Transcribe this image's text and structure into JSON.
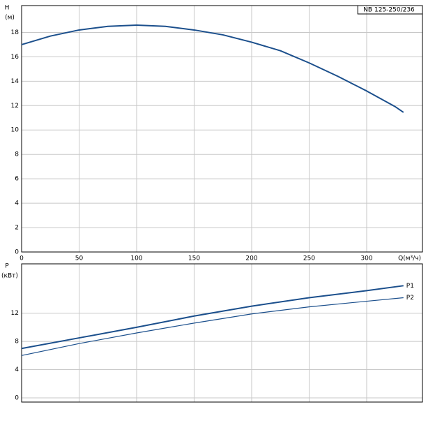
{
  "chart_data": [
    {
      "type": "line",
      "title": "NB 125-250/236",
      "ylabel": "H",
      "yunit": "(м)",
      "xlabel": "Q(м³/ч)",
      "x": [
        0,
        25,
        50,
        75,
        100,
        125,
        150,
        175,
        200,
        225,
        250,
        275,
        300,
        325,
        332
      ],
      "series": [
        {
          "name": "H",
          "color": "#1b4f8c",
          "values": [
            17.0,
            17.7,
            18.2,
            18.5,
            18.6,
            18.5,
            18.2,
            17.8,
            17.2,
            16.5,
            15.5,
            14.4,
            13.2,
            11.9,
            11.45
          ]
        }
      ],
      "xlim": [
        0,
        348.5
      ],
      "xticks": [
        0,
        50,
        100,
        150,
        200,
        250,
        300
      ],
      "ylim": [
        0,
        20.2
      ],
      "yticks": [
        0,
        2,
        4,
        6,
        8,
        10,
        12,
        14,
        16,
        18
      ],
      "grid": true
    },
    {
      "type": "line",
      "ylabel": "P",
      "yunit": "(кВт)",
      "x": [
        0,
        50,
        100,
        150,
        200,
        250,
        300,
        332
      ],
      "series": [
        {
          "name": "P1",
          "color": "#1b4f8c",
          "values": [
            7.0,
            8.5,
            10.0,
            11.6,
            13.0,
            14.2,
            15.2,
            15.9
          ]
        },
        {
          "name": "P2",
          "color": "#1b4f8c",
          "values": [
            6.0,
            7.7,
            9.2,
            10.6,
            11.9,
            12.9,
            13.7,
            14.2
          ]
        }
      ],
      "xlim": [
        0,
        348.5
      ],
      "xticks": [
        0,
        50,
        100,
        150,
        200,
        250,
        300
      ],
      "ylim": [
        -0.6,
        19
      ],
      "yticks": [
        0,
        4,
        8,
        12
      ],
      "grid": true
    }
  ]
}
